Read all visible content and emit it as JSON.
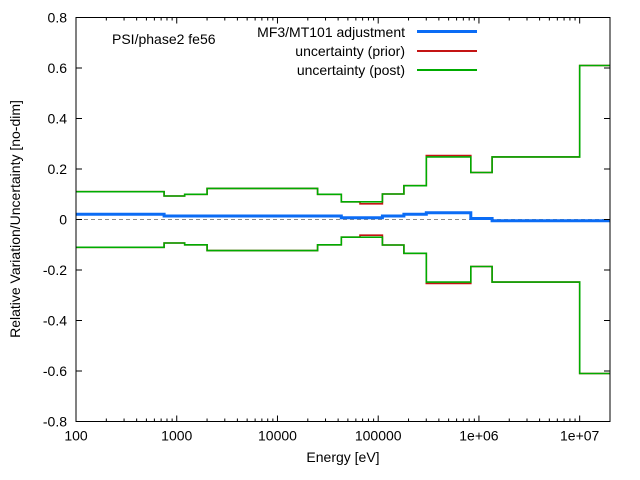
{
  "figure": {
    "inplot_label": "PSI/phase2 fe56"
  },
  "chart_data": {
    "type": "line",
    "subtype": "step-histogram",
    "inplot_label": "PSI/phase2 fe56",
    "xlabel": "Energy [eV]",
    "ylabel": "Relative Variation/Uncertainty [no-dim]",
    "x_scale": "log",
    "x_range": [
      100,
      20000000
    ],
    "y_range": [
      -0.8,
      0.8
    ],
    "grid": false,
    "zero_line": {
      "style": "dashed",
      "color": "#8a8a8a"
    },
    "frame_color": "#000000",
    "x_ticks": [
      {
        "value": 100,
        "label": "100"
      },
      {
        "value": 1000,
        "label": "1000"
      },
      {
        "value": 10000,
        "label": "10000"
      },
      {
        "value": 100000,
        "label": "100000"
      },
      {
        "value": 1000000,
        "label": "1e+06"
      },
      {
        "value": 10000000,
        "label": "1e+07"
      }
    ],
    "y_ticks": [
      {
        "value": 0.8,
        "label": "0.8"
      },
      {
        "value": 0.6,
        "label": "0.6"
      },
      {
        "value": 0.4,
        "label": "0.4"
      },
      {
        "value": 0.2,
        "label": "0.2"
      },
      {
        "value": 0,
        "label": "0"
      },
      {
        "value": -0.2,
        "label": "-0.2"
      },
      {
        "value": -0.4,
        "label": "-0.4"
      },
      {
        "value": -0.6,
        "label": "-0.6"
      },
      {
        "value": -0.8,
        "label": "-0.8"
      }
    ],
    "legend": {
      "position": "top-center-inside",
      "entries": [
        "MF3/MT101 adjustment",
        "uncertainty (prior)",
        "uncertainty (post)"
      ]
    },
    "series": [
      {
        "name": "MF3/MT101 adjustment",
        "color": "#0b6cf5",
        "width": 3,
        "mirrored": false,
        "segments": [
          [
            100,
            750,
            0.021
          ],
          [
            750,
            43000,
            0.014
          ],
          [
            43000,
            110000,
            0.007
          ],
          [
            110000,
            180000,
            0.014
          ],
          [
            180000,
            300000,
            0.021
          ],
          [
            300000,
            830000,
            0.027
          ],
          [
            830000,
            1350000,
            0.004
          ],
          [
            1350000,
            20000000,
            -0.005
          ]
        ]
      },
      {
        "name": "uncertainty (prior)",
        "color": "#c41414",
        "width": 1.6,
        "mirrored": true,
        "segments": [
          [
            100,
            750,
            0.11
          ],
          [
            750,
            1200,
            0.093
          ],
          [
            1200,
            2000,
            0.1
          ],
          [
            2000,
            25000,
            0.123
          ],
          [
            25000,
            43000,
            0.1
          ],
          [
            43000,
            66000,
            0.07
          ],
          [
            66000,
            110000,
            0.062
          ],
          [
            110000,
            180000,
            0.101
          ],
          [
            180000,
            300000,
            0.134
          ],
          [
            300000,
            830000,
            0.253
          ],
          [
            830000,
            1350000,
            0.186
          ],
          [
            1350000,
            10000000,
            0.248
          ],
          [
            10000000,
            20000000,
            0.61
          ]
        ]
      },
      {
        "name": "uncertainty (post)",
        "color": "#00ab00",
        "width": 1.6,
        "mirrored": true,
        "segments": [
          [
            100,
            750,
            0.11
          ],
          [
            750,
            1200,
            0.093
          ],
          [
            1200,
            2000,
            0.1
          ],
          [
            2000,
            25000,
            0.123
          ],
          [
            25000,
            43000,
            0.1
          ],
          [
            43000,
            110000,
            0.07
          ],
          [
            110000,
            180000,
            0.101
          ],
          [
            180000,
            300000,
            0.134
          ],
          [
            300000,
            830000,
            0.248
          ],
          [
            830000,
            1350000,
            0.186
          ],
          [
            1350000,
            10000000,
            0.248
          ],
          [
            10000000,
            20000000,
            0.61
          ]
        ]
      }
    ],
    "draw_order": [
      1,
      2,
      0
    ]
  }
}
